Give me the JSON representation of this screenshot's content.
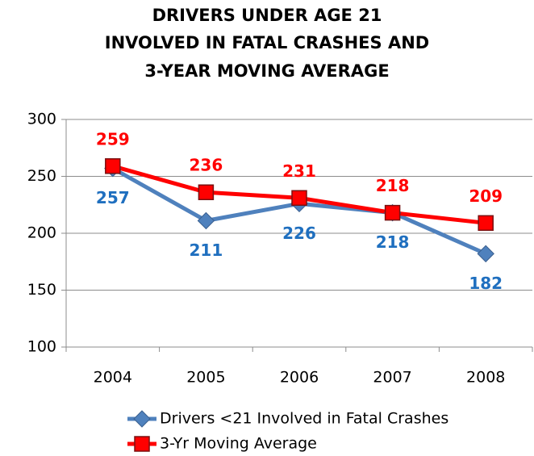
{
  "chart_data": {
    "type": "line",
    "title": [
      "DRIVERS UNDER AGE 21",
      "INVOLVED IN FATAL CRASHES AND",
      "3-YEAR MOVING AVERAGE"
    ],
    "categories": [
      "2004",
      "2005",
      "2006",
      "2007",
      "2008"
    ],
    "series": [
      {
        "name": "Drivers <21 Involved in Fatal Crashes",
        "color": "#4f81bd",
        "label_color": "#1f6fbf",
        "marker": "diamond",
        "label_position": "below",
        "values": [
          257,
          211,
          226,
          218,
          182
        ]
      },
      {
        "name": "3-Yr Moving Average",
        "color": "#ff0000",
        "label_color": "#ff0000",
        "marker": "square",
        "label_position": "above",
        "values": [
          259,
          236,
          231,
          218,
          209
        ]
      }
    ],
    "ylim": [
      100,
      300
    ],
    "yticks": [
      100,
      150,
      200,
      250,
      300
    ],
    "grid": true
  }
}
